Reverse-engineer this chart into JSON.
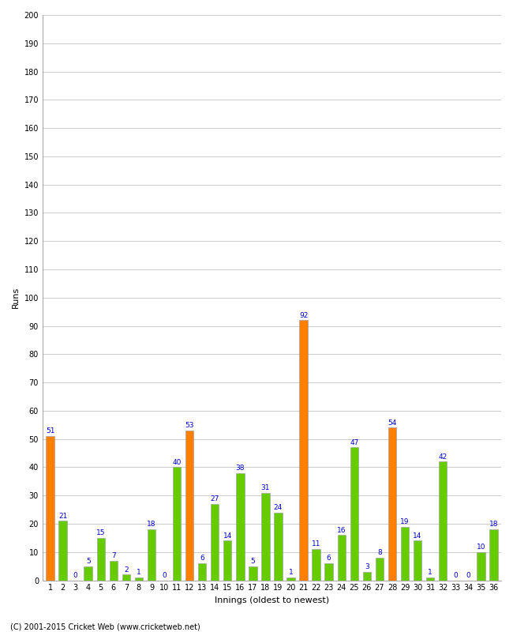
{
  "xlabel": "Innings (oldest to newest)",
  "ylabel": "Runs",
  "copyright": "(C) 2001-2015 Cricket Web (www.cricketweb.net)",
  "ylim": [
    0,
    200
  ],
  "yticks": [
    0,
    10,
    20,
    30,
    40,
    50,
    60,
    70,
    80,
    90,
    100,
    110,
    120,
    130,
    140,
    150,
    160,
    170,
    180,
    190,
    200
  ],
  "innings": [
    1,
    2,
    3,
    4,
    5,
    6,
    7,
    8,
    9,
    10,
    11,
    12,
    13,
    14,
    15,
    16,
    17,
    18,
    19,
    20,
    21,
    22,
    23,
    24,
    25,
    26,
    27,
    28,
    29,
    30,
    31,
    32,
    33,
    34,
    35,
    36
  ],
  "values": [
    51,
    21,
    0,
    5,
    15,
    7,
    2,
    1,
    18,
    0,
    40,
    53,
    6,
    27,
    14,
    38,
    5,
    31,
    24,
    1,
    92,
    11,
    6,
    16,
    47,
    3,
    8,
    54,
    19,
    14,
    1,
    42,
    0,
    0,
    10,
    18
  ],
  "colors": [
    "#ff8000",
    "#66cc00",
    "#66cc00",
    "#66cc00",
    "#66cc00",
    "#66cc00",
    "#66cc00",
    "#66cc00",
    "#66cc00",
    "#66cc00",
    "#66cc00",
    "#ff8000",
    "#66cc00",
    "#66cc00",
    "#66cc00",
    "#66cc00",
    "#66cc00",
    "#66cc00",
    "#66cc00",
    "#66cc00",
    "#ff8000",
    "#66cc00",
    "#66cc00",
    "#66cc00",
    "#66cc00",
    "#66cc00",
    "#66cc00",
    "#ff8000",
    "#66cc00",
    "#66cc00",
    "#66cc00",
    "#66cc00",
    "#66cc00",
    "#66cc00",
    "#66cc00",
    "#66cc00"
  ],
  "background_color": "#ffffff",
  "label_color": "#0000cc",
  "grid_color": "#cccccc",
  "bar_edge_color": "#999999",
  "label_fontsize": 8,
  "tick_fontsize": 7,
  "annot_fontsize": 6.5
}
